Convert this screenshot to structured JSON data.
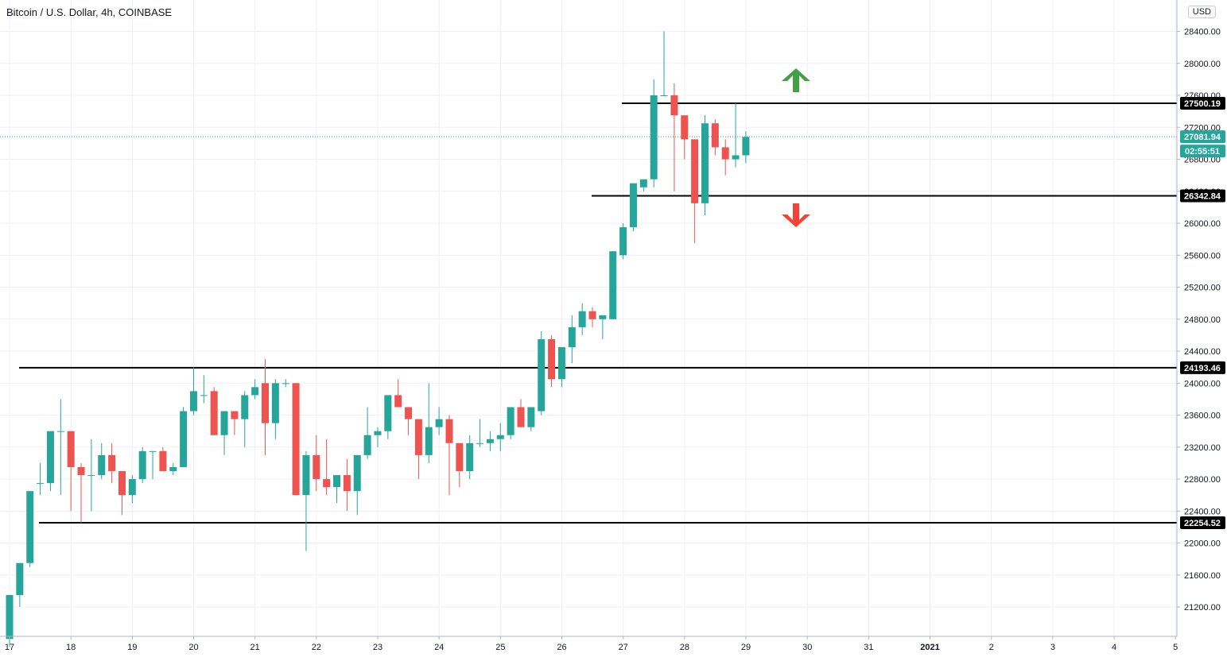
{
  "header": {
    "title": "Bitcoin / U.S. Dollar, 4h, COINBASE",
    "currency": "USD"
  },
  "colors": {
    "up": "#26a69a",
    "down": "#ef5350",
    "grid": "#eef0f3",
    "level_line": "#000000",
    "arrow_up": "#43a047",
    "arrow_down": "#f44336"
  },
  "chart_data": {
    "type": "candlestick",
    "timeframe": "4h",
    "ylim": [
      20800,
      28600
    ],
    "grid": true,
    "y_ticks": [
      "21200.00",
      "21600.00",
      "22000.00",
      "22400.00",
      "22800.00",
      "23200.00",
      "23600.00",
      "24000.00",
      "24400.00",
      "24800.00",
      "25200.00",
      "25600.00",
      "26000.00",
      "26400.00",
      "26800.00",
      "27200.00",
      "27600.00",
      "28000.00",
      "28400.00"
    ],
    "x_ticks": [
      {
        "label": "17",
        "day": 17
      },
      {
        "label": "18",
        "day": 18
      },
      {
        "label": "19",
        "day": 19
      },
      {
        "label": "20",
        "day": 20
      },
      {
        "label": "21",
        "day": 21
      },
      {
        "label": "22",
        "day": 22
      },
      {
        "label": "23",
        "day": 23
      },
      {
        "label": "24",
        "day": 24
      },
      {
        "label": "25",
        "day": 25
      },
      {
        "label": "26",
        "day": 26
      },
      {
        "label": "27",
        "day": 27
      },
      {
        "label": "28",
        "day": 28
      },
      {
        "label": "29",
        "day": 29
      },
      {
        "label": "30",
        "day": 30
      },
      {
        "label": "31",
        "day": 31
      },
      {
        "label": "2021",
        "day": 32
      },
      {
        "label": "2",
        "day": 33
      },
      {
        "label": "3",
        "day": 34
      },
      {
        "label": "4",
        "day": 35
      },
      {
        "label": "5",
        "day": 36
      }
    ],
    "candles_ohlc": [
      [
        20800,
        21350,
        20700,
        21350
      ],
      [
        21350,
        21750,
        21200,
        21750
      ],
      [
        21750,
        22650,
        21700,
        22650
      ],
      [
        22750,
        23000,
        22600,
        22750
      ],
      [
        22750,
        23400,
        22650,
        23400
      ],
      [
        23400,
        23800,
        22600,
        23400
      ],
      [
        23400,
        23400,
        22400,
        22950
      ],
      [
        22950,
        23000,
        22250,
        22850
      ],
      [
        22850,
        23300,
        22400,
        22850
      ],
      [
        22850,
        23250,
        22800,
        23100
      ],
      [
        23100,
        23250,
        22750,
        22900
      ],
      [
        22900,
        22900,
        22350,
        22600
      ],
      [
        22600,
        22850,
        22500,
        22800
      ],
      [
        22800,
        23200,
        22750,
        23150
      ],
      [
        23150,
        23150,
        22800,
        23150
      ],
      [
        23150,
        23200,
        22900,
        22900
      ],
      [
        22900,
        23000,
        22850,
        22950
      ],
      [
        22950,
        23700,
        22950,
        23650
      ],
      [
        23650,
        24200,
        23600,
        23900
      ],
      [
        23850,
        24100,
        23750,
        23850
      ],
      [
        23900,
        23950,
        23350,
        23350
      ],
      [
        23350,
        23650,
        23100,
        23650
      ],
      [
        23650,
        23600,
        23350,
        23550
      ],
      [
        23550,
        23900,
        23200,
        23850
      ],
      [
        23850,
        24050,
        23800,
        23950
      ],
      [
        24000,
        24300,
        23100,
        23500
      ],
      [
        23500,
        24050,
        23300,
        24000
      ],
      [
        24000,
        24050,
        23950,
        24000
      ],
      [
        24000,
        24000,
        22600,
        22600
      ],
      [
        22600,
        23150,
        21900,
        23100
      ],
      [
        23100,
        23350,
        22650,
        22800
      ],
      [
        22800,
        23300,
        22600,
        22700
      ],
      [
        22700,
        22800,
        22500,
        22850
      ],
      [
        22850,
        23050,
        22400,
        22650
      ],
      [
        22650,
        23100,
        22350,
        23100
      ],
      [
        23100,
        23700,
        23050,
        23350
      ],
      [
        23350,
        23450,
        23200,
        23400
      ],
      [
        23400,
        23800,
        23300,
        23850
      ],
      [
        23850,
        24050,
        23700,
        23700
      ],
      [
        23700,
        23600,
        23350,
        23550
      ],
      [
        23550,
        23550,
        22800,
        23100
      ],
      [
        23100,
        24000,
        23000,
        23450
      ],
      [
        23450,
        23700,
        23350,
        23550
      ],
      [
        23550,
        23600,
        22600,
        23250
      ],
      [
        23250,
        23250,
        22700,
        22900
      ],
      [
        22900,
        23350,
        22800,
        23250
      ],
      [
        23250,
        23550,
        23200,
        23250
      ],
      [
        23250,
        23400,
        23150,
        23300
      ],
      [
        23300,
        23500,
        23150,
        23350
      ],
      [
        23350,
        23700,
        23300,
        23700
      ],
      [
        23700,
        23800,
        23450,
        23450
      ],
      [
        23450,
        23700,
        23400,
        23700
      ],
      [
        23650,
        24650,
        23600,
        24550
      ],
      [
        24550,
        24600,
        23950,
        24050
      ],
      [
        24050,
        24450,
        23950,
        24450
      ],
      [
        24450,
        24850,
        24250,
        24700
      ],
      [
        24700,
        25000,
        24600,
        24900
      ],
      [
        24900,
        24950,
        24700,
        24800
      ],
      [
        24800,
        24800,
        24550,
        24850
      ],
      [
        24800,
        25650,
        24800,
        25650
      ],
      [
        25600,
        26000,
        25550,
        25950
      ],
      [
        25950,
        26500,
        25900,
        26500
      ],
      [
        26450,
        26550,
        26400,
        26550
      ],
      [
        26550,
        27800,
        26450,
        27600
      ],
      [
        27600,
        28400,
        27600,
        27600
      ],
      [
        27600,
        27750,
        26400,
        27350
      ],
      [
        27350,
        27300,
        26800,
        27050
      ],
      [
        27050,
        27050,
        25750,
        26250
      ],
      [
        26250,
        27350,
        26100,
        27250
      ],
      [
        27250,
        27300,
        26850,
        26950
      ],
      [
        26950,
        27050,
        26600,
        26800
      ],
      [
        26800,
        27500,
        26700,
        26850
      ],
      [
        26850,
        27150,
        26750,
        27080
      ]
    ],
    "levels": [
      {
        "value": "27500.19",
        "price": 27500.19
      },
      {
        "value": "26342.84",
        "price": 26342.84
      },
      {
        "value": "24193.46",
        "price": 24193.46
      },
      {
        "value": "22254.52",
        "price": 22254.52
      }
    ],
    "last_price": {
      "value": "27081.94",
      "price": 27081.94,
      "countdown": "02:55:51"
    }
  }
}
